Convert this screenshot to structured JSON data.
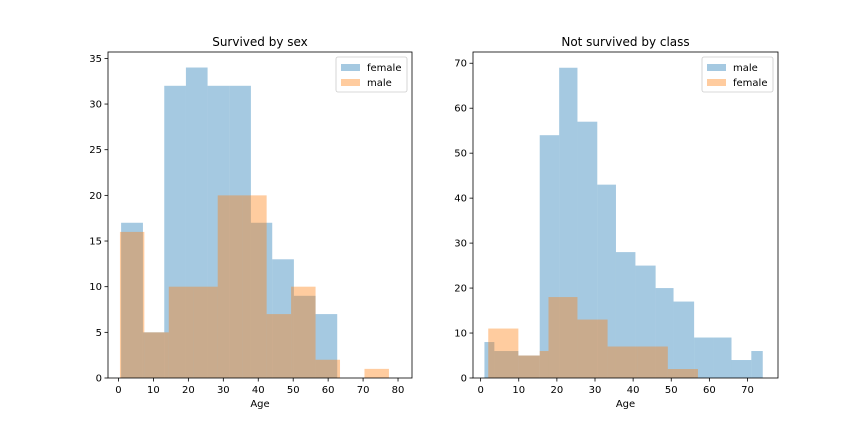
{
  "chart_data": [
    {
      "type": "histogram",
      "title": "Survived by sex",
      "xlabel": "Age",
      "ylabel": "",
      "xlim": [
        -3,
        84
      ],
      "ylim": [
        0,
        35.7
      ],
      "xticks": [
        0,
        10,
        20,
        30,
        40,
        50,
        60,
        70,
        80
      ],
      "yticks": [
        0,
        5,
        10,
        15,
        20,
        25,
        30,
        35
      ],
      "legend": "top-right",
      "series": [
        {
          "name": "female",
          "color": "#1f77b4",
          "alpha": 0.4,
          "edges": [
            0.75,
            7.0,
            13.1,
            19.3,
            25.5,
            31.7,
            37.9,
            44.0,
            50.2,
            56.4,
            62.6
          ],
          "values": [
            17,
            5,
            32,
            34,
            32,
            32,
            17,
            13,
            9,
            7
          ]
        },
        {
          "name": "male",
          "color": "#ff7f0e",
          "alpha": 0.4,
          "edges": [
            0.42,
            7.4,
            14.4,
            21.4,
            28.4,
            35.4,
            42.4,
            49.4,
            56.4,
            63.4,
            70.4,
            77.4
          ],
          "values": [
            16,
            5,
            10,
            10,
            20,
            20,
            7,
            10,
            2,
            0,
            1
          ]
        }
      ]
    },
    {
      "type": "histogram",
      "title": "Not survived by class",
      "xlabel": "Age",
      "ylabel": "",
      "xlim": [
        -2,
        78
      ],
      "ylim": [
        0,
        72.5
      ],
      "xticks": [
        0,
        10,
        20,
        30,
        40,
        50,
        60,
        70
      ],
      "yticks": [
        0,
        10,
        20,
        30,
        40,
        50,
        60,
        70
      ],
      "legend": "top-right",
      "series": [
        {
          "name": "male",
          "color": "#1f77b4",
          "alpha": 0.4,
          "edges": [
            1.0,
            3.6,
            9.9,
            15.5,
            20.6,
            25.4,
            30.6,
            35.5,
            40.6,
            45.9,
            50.6,
            56.0,
            61.2,
            65.8,
            71.0,
            74.0
          ],
          "values": [
            8,
            6,
            5,
            54,
            69,
            57,
            43,
            28,
            25,
            20,
            17,
            9,
            9,
            4,
            6
          ]
        },
        {
          "name": "female",
          "color": "#ff7f0e",
          "alpha": 0.4,
          "edges": [
            2.0,
            9.9,
            15.5,
            17.8,
            25.4,
            33.3,
            41.2,
            49.1,
            57.0
          ],
          "values": [
            11,
            5,
            6,
            18,
            13,
            7,
            7,
            2
          ]
        }
      ]
    }
  ]
}
